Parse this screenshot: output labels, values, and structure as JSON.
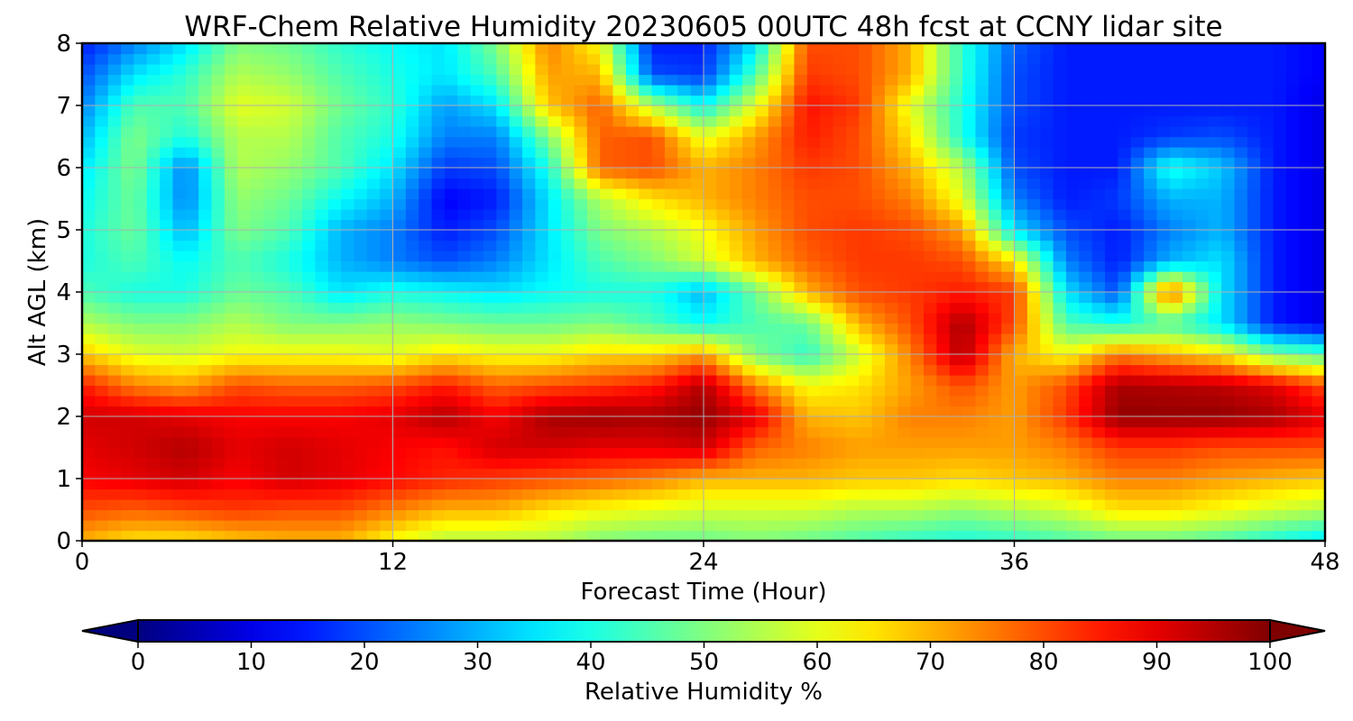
{
  "chart_data": {
    "type": "heatmap",
    "title": "WRF-Chem Relative Humidity 20230605 00UTC 48h fcst at CCNY lidar site",
    "xlabel": "Forecast Time (Hour)",
    "ylabel": "Alt AGL (km)",
    "xlim": [
      0,
      48
    ],
    "ylim": [
      0,
      8
    ],
    "x_ticks": [
      "0",
      "12",
      "24",
      "36",
      "48"
    ],
    "y_ticks": [
      "0",
      "1",
      "2",
      "3",
      "4",
      "5",
      "6",
      "7",
      "8"
    ],
    "grid": true,
    "colormap": "jet",
    "x": [
      0,
      2,
      4,
      6,
      8,
      10,
      12,
      14,
      16,
      18,
      20,
      22,
      24,
      26,
      28,
      30,
      32,
      34,
      36,
      38,
      40,
      42,
      44,
      46,
      48
    ],
    "y": [
      0,
      0.5,
      1,
      1.5,
      2,
      2.5,
      3,
      3.5,
      4,
      4.5,
      5,
      5.5,
      6,
      6.5,
      7,
      7.5,
      8
    ],
    "z": [
      [
        70,
        65,
        65,
        68,
        70,
        70,
        62,
        55,
        55,
        55,
        50,
        48,
        48,
        50,
        48,
        45,
        42,
        40,
        42,
        45,
        48,
        48,
        45,
        40,
        35
      ],
      [
        80,
        78,
        80,
        82,
        80,
        80,
        75,
        70,
        70,
        65,
        62,
        60,
        58,
        58,
        58,
        55,
        55,
        52,
        55,
        58,
        65,
        65,
        62,
        58,
        55
      ],
      [
        88,
        90,
        92,
        88,
        92,
        90,
        87,
        84,
        82,
        80,
        78,
        75,
        70,
        70,
        70,
        68,
        68,
        66,
        68,
        70,
        75,
        75,
        72,
        70,
        68
      ],
      [
        90,
        92,
        95,
        90,
        92,
        90,
        88,
        86,
        92,
        92,
        90,
        90,
        92,
        78,
        75,
        72,
        72,
        72,
        72,
        75,
        82,
        82,
        80,
        80,
        80
      ],
      [
        92,
        92,
        90,
        88,
        88,
        88,
        90,
        95,
        88,
        96,
        97,
        96,
        98,
        90,
        70,
        68,
        75,
        75,
        72,
        82,
        98,
        98,
        98,
        96,
        90
      ],
      [
        85,
        75,
        72,
        80,
        78,
        78,
        80,
        85,
        78,
        80,
        82,
        85,
        95,
        75,
        62,
        65,
        72,
        80,
        72,
        80,
        96,
        95,
        94,
        90,
        80
      ],
      [
        68,
        60,
        58,
        62,
        62,
        62,
        60,
        65,
        62,
        62,
        66,
        66,
        72,
        50,
        42,
        58,
        75,
        95,
        70,
        62,
        75,
        70,
        65,
        50,
        45
      ],
      [
        55,
        50,
        50,
        55,
        50,
        50,
        52,
        50,
        48,
        48,
        50,
        45,
        38,
        45,
        48,
        70,
        80,
        96,
        80,
        45,
        40,
        45,
        35,
        15,
        10
      ],
      [
        45,
        40,
        40,
        48,
        45,
        35,
        40,
        38,
        35,
        38,
        40,
        40,
        30,
        48,
        70,
        80,
        82,
        85,
        82,
        35,
        20,
        80,
        35,
        15,
        10
      ],
      [
        40,
        45,
        38,
        45,
        40,
        30,
        25,
        20,
        25,
        35,
        45,
        50,
        58,
        70,
        78,
        82,
        82,
        80,
        65,
        25,
        15,
        30,
        35,
        15,
        10
      ],
      [
        40,
        48,
        30,
        50,
        45,
        30,
        25,
        15,
        20,
        35,
        50,
        55,
        62,
        72,
        80,
        82,
        80,
        72,
        35,
        20,
        15,
        25,
        30,
        15,
        10
      ],
      [
        38,
        48,
        25,
        52,
        48,
        38,
        30,
        12,
        15,
        35,
        55,
        65,
        70,
        75,
        80,
        80,
        75,
        60,
        25,
        15,
        18,
        30,
        30,
        15,
        10
      ],
      [
        35,
        50,
        25,
        55,
        52,
        45,
        35,
        18,
        20,
        40,
        78,
        80,
        70,
        75,
        82,
        80,
        70,
        55,
        20,
        15,
        15,
        40,
        32,
        15,
        10
      ],
      [
        30,
        50,
        40,
        55,
        55,
        45,
        40,
        25,
        25,
        50,
        78,
        80,
        60,
        72,
        85,
        80,
        65,
        40,
        18,
        15,
        15,
        18,
        20,
        15,
        10
      ],
      [
        25,
        45,
        45,
        60,
        58,
        48,
        42,
        28,
        35,
        68,
        78,
        55,
        38,
        60,
        86,
        82,
        60,
        40,
        20,
        15,
        15,
        15,
        15,
        15,
        10
      ],
      [
        20,
        35,
        42,
        55,
        52,
        45,
        40,
        35,
        45,
        72,
        70,
        20,
        18,
        45,
        82,
        80,
        70,
        42,
        20,
        15,
        15,
        15,
        15,
        15,
        12
      ],
      [
        15,
        25,
        35,
        50,
        48,
        42,
        38,
        35,
        50,
        75,
        62,
        15,
        15,
        35,
        80,
        80,
        70,
        42,
        22,
        15,
        15,
        15,
        15,
        15,
        12
      ]
    ],
    "colorbar": {
      "label": "Relative Humidity %",
      "ticks": [
        "0",
        "10",
        "20",
        "30",
        "40",
        "50",
        "60",
        "70",
        "80",
        "90",
        "100"
      ],
      "range": [
        0,
        100
      ],
      "extend": "both"
    }
  }
}
